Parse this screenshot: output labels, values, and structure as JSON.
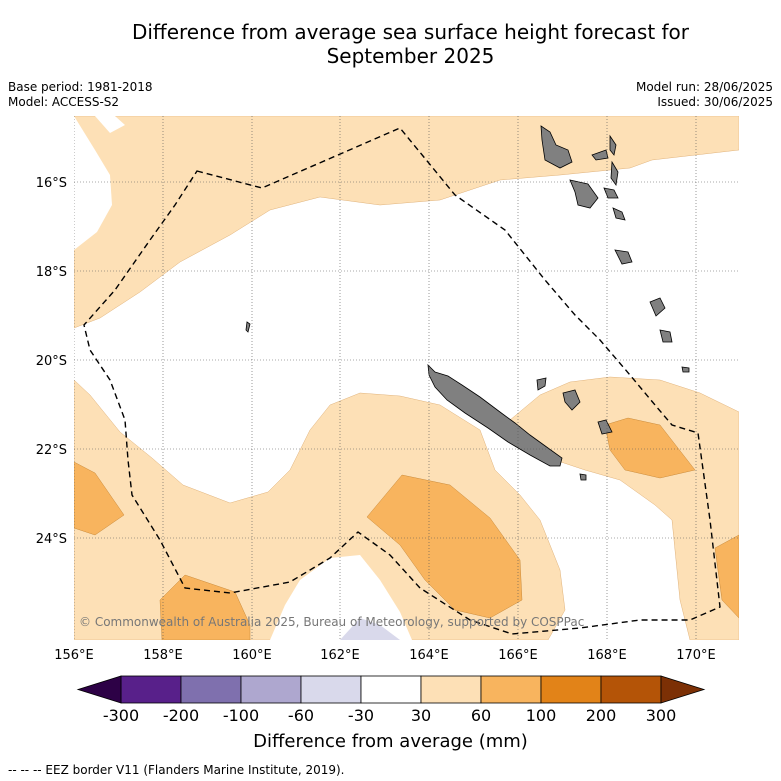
{
  "title": "Difference from average sea surface height forecast for September 2025",
  "title_line1": "Difference from average sea surface height forecast for",
  "title_line2": "September 2025",
  "base_period": "Base period: 1981-2018",
  "model": "Model: ACCESS-S2",
  "model_run": "Model run: 28/06/2025",
  "issued": "Issued: 30/06/2025",
  "copyright": "© Commonwealth of Australia 2025, Bureau of Meteorology, supported by COSPPac",
  "lat_labels": [
    "16°S",
    "18°S",
    "20°S",
    "22°S",
    "24°S"
  ],
  "lon_labels": [
    "156°E",
    "158°E",
    "160°E",
    "162°E",
    "164°E",
    "166°E",
    "168°E",
    "170°E"
  ],
  "colorbar": {
    "title": "Difference from average (mm)",
    "tick_labels": [
      "-300",
      "-200",
      "-100",
      "-60",
      "-30",
      "30",
      "60",
      "100",
      "200",
      "300"
    ],
    "colors": [
      "#58208a",
      "#7f70ae",
      "#aea7cf",
      "#d9d9eb",
      "#ffffff",
      "#fde0b6",
      "#f8b45e",
      "#e28318",
      "#b45407"
    ],
    "under_color": "#2d0146",
    "over_color": "#7c3005"
  },
  "footer": "-- -- -- EEZ border V11 (Flanders Marine Institute, 2019).",
  "colors": {
    "land": "#808080",
    "anom_30_60": "#fde0b6",
    "anom_60_100": "#f8b45e",
    "anom_neg_30_60": "#d9d9eb"
  }
}
